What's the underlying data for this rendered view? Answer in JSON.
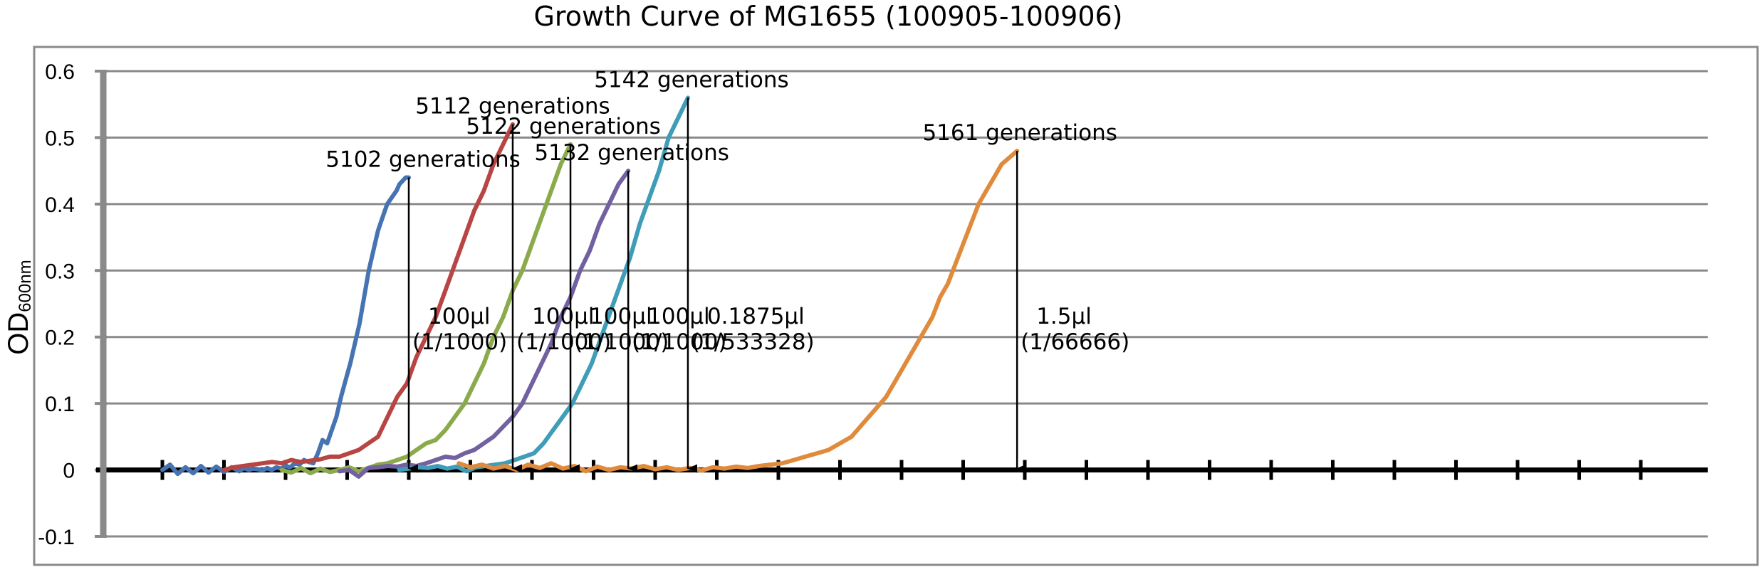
{
  "chart_data": {
    "type": "line",
    "title": "Growth Curve of MG1655 (100905-100906)",
    "ylabel": "OD",
    "ylabel_subscript": "600nm",
    "xlabel": "",
    "ylim": [
      -0.1,
      0.6
    ],
    "yticks": [
      "0.6",
      "0.5",
      "0.4",
      "0.3",
      "0.2",
      "0.1",
      "0",
      "-0.1"
    ],
    "grid": true,
    "legend": "none",
    "x_tick_count": 25,
    "series": [
      {
        "color": "#4674B2",
        "x": [
          0,
          0.5,
          1,
          1.5,
          2,
          2.5,
          3,
          3.5,
          4,
          4.5,
          5,
          5.3,
          5.6,
          5.9,
          6.2,
          6.5,
          6.8,
          7.1,
          7.4,
          7.7,
          8,
          8.3,
          8.6,
          8.9,
          9.2,
          9.5,
          9.8,
          10.1,
          10.4,
          10.7,
          11,
          11.3,
          11.6,
          11.9,
          12.2,
          12.5,
          12.8,
          13.1,
          13.4,
          13.7,
          14,
          14.3,
          14.6,
          14.9,
          15.2,
          15.4,
          15.6,
          15.8,
          16
        ],
        "y": [
          0.0,
          0.008,
          -0.006,
          0.004,
          -0.005,
          0.006,
          -0.004,
          0.005,
          -0.003,
          0.004,
          -0.002,
          0.003,
          0.0,
          0.002,
          0.001,
          -0.001,
          0.003,
          0.0,
          0.004,
          0.002,
          0.006,
          0.004,
          0.01,
          0.008,
          0.015,
          0.012,
          0.01,
          0.025,
          0.045,
          0.04,
          0.06,
          0.08,
          0.11,
          0.135,
          0.16,
          0.19,
          0.22,
          0.26,
          0.3,
          0.33,
          0.36,
          0.38,
          0.4,
          0.41,
          0.42,
          0.43,
          0.435,
          0.44,
          0.44
        ]
      },
      {
        "color": "#B84543",
        "x": [
          0,
          0.5,
          1,
          1.5,
          2,
          2.5,
          3,
          3.5,
          4,
          4.5,
          5,
          5.5,
          6,
          6.5,
          7,
          7.5,
          8,
          8.5,
          9,
          9.5,
          10,
          10.5,
          11,
          11.5,
          12,
          12.5,
          13,
          13.5,
          14,
          14.5,
          15
        ],
        "y": [
          0.0,
          0.004,
          0.006,
          0.008,
          0.01,
          0.012,
          0.01,
          0.015,
          0.012,
          0.014,
          0.016,
          0.02,
          0.02,
          0.025,
          0.03,
          0.04,
          0.05,
          0.08,
          0.11,
          0.13,
          0.17,
          0.2,
          0.23,
          0.27,
          0.31,
          0.35,
          0.39,
          0.42,
          0.46,
          0.49,
          0.52
        ]
      },
      {
        "color": "#8BAA4B",
        "x": [
          0,
          0.5,
          1,
          1.5,
          2,
          2.5,
          3,
          3.5,
          4,
          4.5,
          5,
          5.5,
          6,
          6.5,
          7,
          7.5,
          8,
          8.5,
          9,
          9.5,
          10,
          10.5,
          11,
          11.5,
          12,
          12.5,
          13,
          13.5,
          14,
          14.5,
          15
        ],
        "y": [
          0.0,
          -0.004,
          0.003,
          -0.005,
          0.002,
          -0.003,
          0.0,
          0.004,
          -0.002,
          0.003,
          0.008,
          0.01,
          0.015,
          0.02,
          0.03,
          0.04,
          0.045,
          0.06,
          0.08,
          0.1,
          0.13,
          0.16,
          0.2,
          0.23,
          0.27,
          0.3,
          0.34,
          0.38,
          0.42,
          0.46,
          0.49
        ]
      },
      {
        "color": "#7260A0",
        "x": [
          0,
          0.5,
          1,
          1.5,
          2,
          2.5,
          3,
          3.5,
          4,
          4.5,
          5,
          5.5,
          6,
          6.5,
          7,
          7.5,
          8,
          8.5,
          9,
          9.5,
          10,
          10.5,
          11,
          11.5,
          12,
          12.5,
          13,
          13.5,
          14,
          14.5,
          15
        ],
        "y": [
          -0.002,
          0.0,
          -0.01,
          0.003,
          0.004,
          0.006,
          0.005,
          0.008,
          0.006,
          0.01,
          0.015,
          0.02,
          0.018,
          0.025,
          0.03,
          0.04,
          0.05,
          0.065,
          0.08,
          0.1,
          0.13,
          0.16,
          0.19,
          0.23,
          0.26,
          0.3,
          0.33,
          0.37,
          0.4,
          0.43,
          0.45
        ]
      },
      {
        "color": "#3F9DB8",
        "x": [
          0,
          0.5,
          1,
          1.5,
          2,
          2.5,
          3,
          3.5,
          4,
          4.5,
          5,
          5.5,
          6,
          6.5,
          7,
          7.5,
          8,
          8.5,
          9,
          9.5,
          10,
          10.5,
          11,
          11.5,
          12,
          12.5,
          13,
          13.5,
          14,
          14.5,
          15
        ],
        "y": [
          0.0,
          0.002,
          0.004,
          0.003,
          0.006,
          0.002,
          0.005,
          -0.002,
          0.004,
          0.006,
          0.008,
          0.01,
          0.015,
          0.02,
          0.025,
          0.04,
          0.06,
          0.08,
          0.1,
          0.13,
          0.16,
          0.2,
          0.24,
          0.28,
          0.32,
          0.37,
          0.41,
          0.45,
          0.5,
          0.53,
          0.56
        ]
      },
      {
        "color": "#E08B3C",
        "x": [
          0,
          0.6,
          1.2,
          1.8,
          2.4,
          3,
          3.6,
          4.2,
          4.8,
          5.4,
          6,
          6.6,
          7.2,
          7.8,
          8.4,
          9,
          9.6,
          10.2,
          10.8,
          11.4,
          12,
          12.6,
          13.2,
          13.8,
          14.4,
          15,
          15.6,
          16.2,
          16.8,
          17.4,
          18,
          18.6,
          19.2,
          19.8,
          20.4,
          21,
          21.6,
          22.2,
          22.8,
          23.4,
          24,
          24.6,
          25,
          25.4,
          25.8,
          26.2,
          26.6,
          27,
          27.4,
          27.8,
          28.2,
          28.6,
          29
        ],
        "y": [
          0.01,
          0.004,
          0.008,
          0.002,
          0.006,
          0.0,
          0.008,
          0.003,
          0.01,
          0.002,
          0.006,
          -0.002,
          0.005,
          0.0,
          0.004,
          0.002,
          0.006,
          0.001,
          0.004,
          0.0,
          0.003,
          -0.001,
          0.004,
          0.002,
          0.005,
          0.003,
          0.006,
          0.008,
          0.01,
          0.015,
          0.02,
          0.025,
          0.03,
          0.04,
          0.05,
          0.07,
          0.09,
          0.11,
          0.14,
          0.17,
          0.2,
          0.23,
          0.26,
          0.28,
          0.31,
          0.34,
          0.37,
          0.4,
          0.42,
          0.44,
          0.46,
          0.47,
          0.48
        ]
      }
    ],
    "annotations": [
      {
        "label": "5102 generations",
        "dilution_value": "100μl",
        "dilution_ratio": "(1/1000)",
        "peak": 0.44
      },
      {
        "label": "5112 generations",
        "dilution_value": "100μl",
        "dilution_ratio": "(1/1000)",
        "peak": 0.52
      },
      {
        "label": "5122 generations",
        "dilution_value": "100μl",
        "dilution_ratio": "(1/1000)",
        "peak": 0.49
      },
      {
        "label": "5132 generations",
        "dilution_value": "100μl",
        "dilution_ratio": "(1/1000)",
        "peak": 0.45
      },
      {
        "label": "5142 generations",
        "dilution_value": "0.1875μl",
        "dilution_ratio": "(1/533328)",
        "peak": 0.56
      },
      {
        "label": "5161 generations",
        "dilution_value": "1.5μl",
        "dilution_ratio": "(1/66666)",
        "peak": 0.48
      }
    ]
  }
}
